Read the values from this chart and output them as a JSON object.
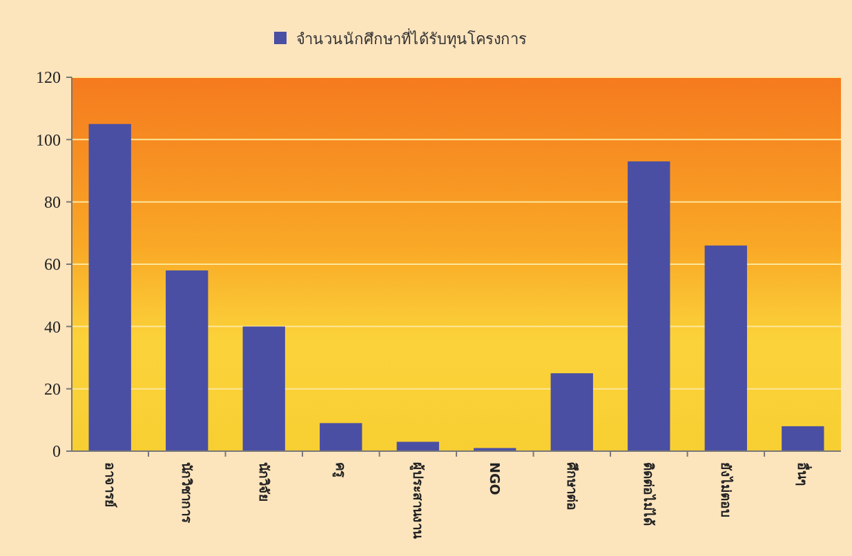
{
  "chart_data": {
    "type": "bar",
    "categories": [
      "อาจารย์",
      "นักวิชาการ",
      "นักวิจัย",
      "ครู",
      "ผู้ประสานงาน",
      "NGO",
      "ศึกษาต่อ",
      "ติดต่อไม่ได้",
      "ยังไม่ตอบ",
      "อื่นๆ"
    ],
    "series": [
      {
        "name": "จำนวนนักศึกษาที่ได้รับทุนโครงการ",
        "color": "#4a4fa3",
        "values": [
          105,
          58,
          40,
          9,
          3,
          1,
          25,
          93,
          66,
          8
        ]
      }
    ],
    "ylim": [
      0,
      120
    ],
    "yticks": [
      0,
      20,
      40,
      60,
      80,
      100,
      120
    ],
    "grid": "y",
    "legend": "top"
  }
}
